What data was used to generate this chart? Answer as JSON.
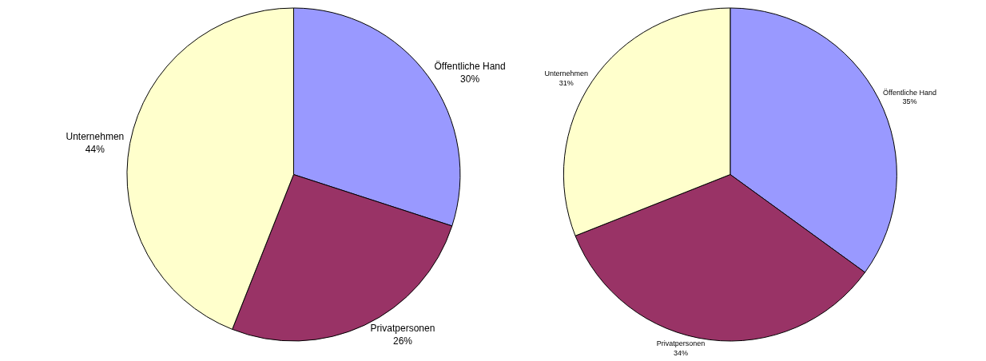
{
  "chart_data": [
    {
      "type": "pie",
      "categories": [
        "Öffentliche Hand",
        "Privatpersonen",
        "Unternehmen"
      ],
      "values": [
        30,
        26,
        44
      ],
      "value_labels": [
        "30%",
        "26%",
        "44%"
      ],
      "colors": [
        "#9999ff",
        "#993366",
        "#ffffcc"
      ],
      "legend": false
    },
    {
      "type": "pie",
      "categories": [
        "Öffentliche Hand",
        "Privatpersonen",
        "Unternehmen"
      ],
      "values": [
        35,
        34,
        31
      ],
      "value_labels": [
        "35%",
        "34%",
        "31%"
      ],
      "colors": [
        "#9999ff",
        "#993366",
        "#ffffcc"
      ],
      "legend": false
    }
  ]
}
